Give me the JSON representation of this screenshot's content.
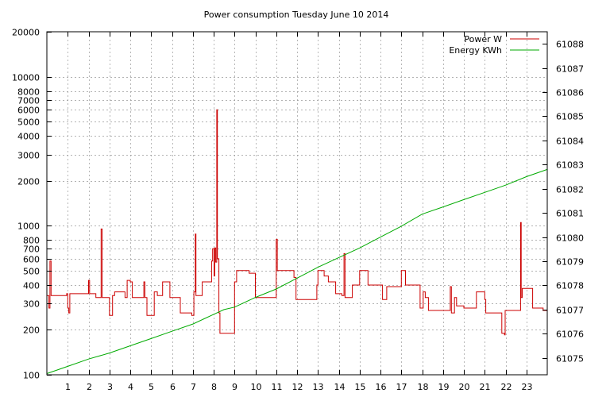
{
  "colors": {
    "power": "#cc0000",
    "energy": "#00aa00",
    "grid": "#999999",
    "axis": "#000000",
    "background": "#ffffff"
  },
  "chart_data": {
    "type": "line",
    "title": "Power consumption Tuesday June 10 2014",
    "xlabel": "",
    "ylabel": "",
    "y2label": "",
    "legend_position": "top-right",
    "grid": true,
    "x_range": [
      0,
      24
    ],
    "x_ticks": [
      1,
      2,
      3,
      4,
      5,
      6,
      7,
      8,
      9,
      10,
      11,
      12,
      13,
      14,
      15,
      16,
      17,
      18,
      19,
      20,
      21,
      22,
      23
    ],
    "y_range": [
      100,
      20000
    ],
    "y_scale": "log",
    "y_ticks": [
      {
        "value": 100,
        "label": "100"
      },
      {
        "value": 200,
        "label": "200"
      },
      {
        "value": 300,
        "label": "300"
      },
      {
        "value": 400,
        "label": "400"
      },
      {
        "value": 500,
        "label": "500"
      },
      {
        "value": 600,
        "label": "600"
      },
      {
        "value": 700,
        "label": "700"
      },
      {
        "value": 800,
        "label": "800"
      },
      {
        "value": 1000,
        "label": "1000"
      },
      {
        "value": 2000,
        "label": "2000"
      },
      {
        "value": 3000,
        "label": "3000"
      },
      {
        "value": 4000,
        "label": "4000"
      },
      {
        "value": 5000,
        "label": "5000"
      },
      {
        "value": 6000,
        "label": "6000"
      },
      {
        "value": 7000,
        "label": "7000"
      },
      {
        "value": 8000,
        "label": "8000"
      },
      {
        "value": 10000,
        "label": "10000"
      },
      {
        "value": 20000,
        "label": "20000"
      }
    ],
    "y2_range": [
      61074.3,
      61088.5
    ],
    "y2_scale": "log",
    "y2_ticks": [
      61075,
      61076,
      61077,
      61078,
      61079,
      61080,
      61081,
      61082,
      61083,
      61084,
      61085,
      61086,
      61087,
      61088
    ],
    "series": [
      {
        "name": "Power W",
        "axis": "y",
        "step": true,
        "points": [
          [
            0.0,
            340
          ],
          [
            0.1,
            280
          ],
          [
            0.15,
            580
          ],
          [
            0.2,
            340
          ],
          [
            0.7,
            340
          ],
          [
            0.95,
            350
          ],
          [
            1.0,
            280
          ],
          [
            1.05,
            260
          ],
          [
            1.1,
            350
          ],
          [
            1.55,
            350
          ],
          [
            1.95,
            350
          ],
          [
            2.0,
            430
          ],
          [
            2.05,
            350
          ],
          [
            2.35,
            330
          ],
          [
            2.55,
            330
          ],
          [
            2.6,
            950
          ],
          [
            2.65,
            330
          ],
          [
            2.95,
            330
          ],
          [
            3.0,
            250
          ],
          [
            3.15,
            340
          ],
          [
            3.25,
            360
          ],
          [
            3.6,
            360
          ],
          [
            3.75,
            330
          ],
          [
            3.85,
            430
          ],
          [
            4.0,
            420
          ],
          [
            4.1,
            330
          ],
          [
            4.65,
            420
          ],
          [
            4.7,
            330
          ],
          [
            4.8,
            250
          ],
          [
            5.15,
            360
          ],
          [
            5.3,
            340
          ],
          [
            5.45,
            340
          ],
          [
            5.55,
            420
          ],
          [
            5.9,
            330
          ],
          [
            6.4,
            260
          ],
          [
            6.95,
            250
          ],
          [
            7.05,
            360
          ],
          [
            7.12,
            880
          ],
          [
            7.15,
            340
          ],
          [
            7.45,
            420
          ],
          [
            7.9,
            580
          ],
          [
            7.95,
            700
          ],
          [
            8.02,
            460
          ],
          [
            8.05,
            710
          ],
          [
            8.1,
            570
          ],
          [
            8.15,
            6000
          ],
          [
            8.18,
            600
          ],
          [
            8.25,
            260
          ],
          [
            8.3,
            190
          ],
          [
            8.6,
            190
          ],
          [
            8.95,
            190
          ],
          [
            9.0,
            420
          ],
          [
            9.1,
            500
          ],
          [
            9.45,
            500
          ],
          [
            9.6,
            500
          ],
          [
            9.7,
            480
          ],
          [
            9.95,
            480
          ],
          [
            10.0,
            330
          ],
          [
            10.75,
            330
          ],
          [
            10.95,
            330
          ],
          [
            11.0,
            810
          ],
          [
            11.05,
            500
          ],
          [
            11.45,
            500
          ],
          [
            11.75,
            500
          ],
          [
            11.85,
            450
          ],
          [
            11.95,
            320
          ],
          [
            12.75,
            320
          ],
          [
            12.95,
            400
          ],
          [
            13.0,
            500
          ],
          [
            13.3,
            460
          ],
          [
            13.5,
            420
          ],
          [
            13.85,
            350
          ],
          [
            14.0,
            350
          ],
          [
            14.15,
            340
          ],
          [
            14.25,
            650
          ],
          [
            14.3,
            330
          ],
          [
            14.55,
            330
          ],
          [
            14.65,
            400
          ],
          [
            14.95,
            400
          ],
          [
            15.0,
            500
          ],
          [
            15.4,
            400
          ],
          [
            16.0,
            400
          ],
          [
            16.1,
            320
          ],
          [
            16.3,
            390
          ],
          [
            16.95,
            390
          ],
          [
            17.0,
            500
          ],
          [
            17.2,
            400
          ],
          [
            17.85,
            400
          ],
          [
            17.9,
            280
          ],
          [
            17.95,
            280
          ],
          [
            18.05,
            360
          ],
          [
            18.15,
            330
          ],
          [
            18.3,
            270
          ],
          [
            18.75,
            270
          ],
          [
            19.3,
            270
          ],
          [
            19.35,
            390
          ],
          [
            19.4,
            260
          ],
          [
            19.55,
            330
          ],
          [
            19.65,
            290
          ],
          [
            19.75,
            290
          ],
          [
            20.0,
            280
          ],
          [
            20.55,
            280
          ],
          [
            20.6,
            360
          ],
          [
            21.0,
            320
          ],
          [
            21.05,
            260
          ],
          [
            21.8,
            260
          ],
          [
            21.82,
            190
          ],
          [
            21.95,
            185
          ],
          [
            21.98,
            270
          ],
          [
            22.7,
            270
          ],
          [
            22.72,
            1050
          ],
          [
            22.75,
            330
          ],
          [
            22.8,
            380
          ],
          [
            23.2,
            380
          ],
          [
            23.3,
            280
          ],
          [
            23.8,
            270
          ],
          [
            24.0,
            200
          ]
        ]
      },
      {
        "name": "Energy KWh",
        "axis": "y2",
        "step": false,
        "points": [
          [
            0.0,
            61074.35
          ],
          [
            1.0,
            61074.65
          ],
          [
            2.0,
            61074.95
          ],
          [
            3.0,
            61075.2
          ],
          [
            4.0,
            61075.5
          ],
          [
            5.0,
            61075.8
          ],
          [
            6.0,
            61076.1
          ],
          [
            7.0,
            61076.4
          ],
          [
            7.5,
            61076.6
          ],
          [
            8.0,
            61076.8
          ],
          [
            8.5,
            61077.0
          ],
          [
            9.0,
            61077.1
          ],
          [
            10.0,
            61077.5
          ],
          [
            11.0,
            61077.85
          ],
          [
            12.0,
            61078.3
          ],
          [
            13.0,
            61078.75
          ],
          [
            14.0,
            61079.15
          ],
          [
            15.0,
            61079.55
          ],
          [
            16.0,
            61080.0
          ],
          [
            17.0,
            61080.45
          ],
          [
            18.0,
            61080.95
          ],
          [
            19.0,
            61081.25
          ],
          [
            20.0,
            61081.55
          ],
          [
            21.0,
            61081.85
          ],
          [
            22.0,
            61082.15
          ],
          [
            23.0,
            61082.5
          ],
          [
            24.0,
            61082.8
          ]
        ]
      }
    ]
  }
}
